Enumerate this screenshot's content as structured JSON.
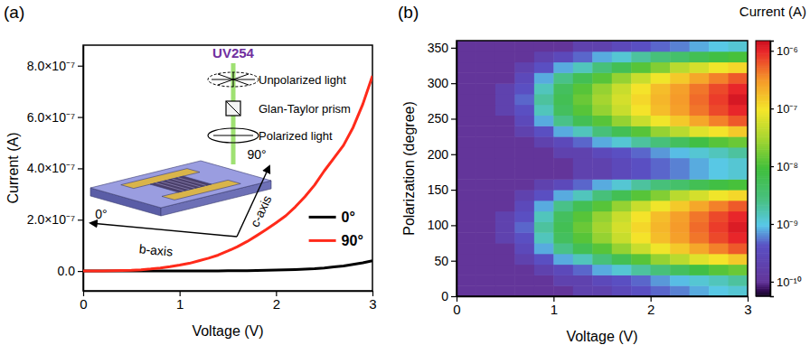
{
  "chart_data": [
    {
      "type": "line",
      "title": "(a)",
      "x_label": "Voltage (V)",
      "y_label": "Current (A)",
      "xlim": [
        0,
        3
      ],
      "xticks": [
        0,
        1,
        2,
        3
      ],
      "ylim": [
        -7.7e-08,
        8.8e-07
      ],
      "yticks": [
        {
          "value": 0,
          "label": "0.0"
        },
        {
          "value": 2e-07,
          "label": "2.0×10⁻⁷"
        },
        {
          "value": 4e-07,
          "label": "4.0×10⁻⁷"
        },
        {
          "value": 6e-07,
          "label": "6.0×10⁻⁷"
        },
        {
          "value": 8e-07,
          "label": "8.0×10⁻⁷"
        }
      ],
      "grid": false,
      "legend": "right",
      "x": [
        0,
        0.1,
        0.2,
        0.3,
        0.4,
        0.5,
        0.6,
        0.7,
        0.8,
        0.9,
        1,
        1.1,
        1.2,
        1.3,
        1.4,
        1.5,
        1.6,
        1.7,
        1.8,
        1.9,
        2,
        2.1,
        2.2,
        2.3,
        2.4,
        2.5,
        2.6,
        2.7,
        2.8,
        2.9,
        3
      ],
      "series": [
        {
          "name": "0°",
          "color": "#000000",
          "values": [
            0,
            0,
            0,
            0,
            0,
            0,
            0,
            0,
            0,
            1e-10,
            1e-10,
            2e-10,
            3e-10,
            5e-10,
            7e-10,
            1e-09,
            1.3e-09,
            1.6e-09,
            2e-09,
            3e-09,
            4e-09,
            5e-09,
            6e-09,
            7.5e-09,
            9e-09,
            1.2e-08,
            1.6e-08,
            2e-08,
            2.6e-08,
            3.2e-08,
            4e-08
          ]
        },
        {
          "name": "90°",
          "color": "#ff2a1a",
          "values": [
            0,
            0,
            5e-10,
            1e-09,
            2e-09,
            3e-09,
            5e-09,
            8e-09,
            1.2e-08,
            1.7e-08,
            2.3e-08,
            3e-08,
            4e-08,
            5e-08,
            6.2e-08,
            7.8e-08,
            9.5e-08,
            1.15e-07,
            1.38e-07,
            1.62e-07,
            1.88e-07,
            2.15e-07,
            2.5e-07,
            2.9e-07,
            3.35e-07,
            3.9e-07,
            4.4e-07,
            4.9e-07,
            5.6e-07,
            6.5e-07,
            7.6e-07
          ]
        }
      ],
      "annotations": [
        "UV254",
        "Unpolarized light",
        "Glan-Taylor prism",
        "Polarized light",
        "90°",
        "c-axis",
        "0°",
        "b-axis"
      ]
    },
    {
      "type": "heatmap",
      "title": "(b)",
      "x_label": "Voltage (V)",
      "y_label": "Polarization (degree)",
      "xlim": [
        0,
        3
      ],
      "xticks": [
        0,
        1,
        2,
        3
      ],
      "ylim": [
        0,
        360
      ],
      "yticks": [
        0,
        50,
        100,
        150,
        200,
        250,
        300,
        350
      ],
      "x": [
        0.1,
        0.3,
        0.5,
        0.7,
        0.9,
        1.1,
        1.3,
        1.5,
        1.7,
        1.9,
        2.1,
        2.3,
        2.5,
        2.7,
        2.9
      ],
      "y": [
        7.5,
        22.5,
        37.5,
        52.5,
        67.5,
        82.5,
        97.5,
        112.5,
        127.5,
        142.5,
        157.5,
        172.5,
        187.5,
        202.5,
        217.5,
        232.5,
        247.5,
        262.5,
        277.5,
        292.5,
        307.5,
        322.5,
        337.5,
        352.5
      ],
      "cells": [
        [
          1e-10,
          1e-10,
          1e-10,
          1e-10,
          1e-10,
          1e-10,
          2e-10,
          2e-10,
          3e-10,
          4e-10,
          5e-10,
          6e-10,
          8e-10,
          1e-09,
          1.2e-09
        ],
        [
          1e-10,
          1e-10,
          1e-10,
          1e-10,
          1e-10,
          2e-10,
          2e-10,
          3e-10,
          4e-10,
          5e-10,
          7e-10,
          9e-10,
          1.2e-09,
          1.5e-09,
          2e-09
        ],
        [
          1e-10,
          1e-10,
          1e-10,
          1e-10,
          2e-10,
          3e-10,
          5e-10,
          8e-10,
          1.2e-09,
          2e-09,
          3e-09,
          5e-09,
          8e-09,
          1.2e-08,
          1.5e-08
        ],
        [
          1e-10,
          1e-10,
          1e-10,
          2e-10,
          4e-10,
          8e-10,
          1.5e-09,
          3e-09,
          6e-09,
          1.2e-08,
          2.5e-08,
          4e-08,
          7e-08,
          1e-07,
          1.5e-07
        ],
        [
          1e-10,
          1e-10,
          1e-10,
          3e-10,
          8e-10,
          2.5e-09,
          6e-09,
          1.2e-08,
          2.5e-08,
          5e-08,
          9e-08,
          1.5e-07,
          2.5e-07,
          4e-07,
          6e-07
        ],
        [
          1e-10,
          1e-10,
          2e-10,
          4e-10,
          1.5e-09,
          5e-09,
          1.2e-08,
          2.5e-08,
          5e-08,
          1e-07,
          1.8e-07,
          2.8e-07,
          4.5e-07,
          7e-07,
          1e-06
        ],
        [
          1e-10,
          1e-10,
          2e-10,
          5e-10,
          2e-09,
          6e-09,
          1.5e-08,
          3e-08,
          6e-08,
          1.2e-07,
          2e-07,
          3e-07,
          5e-07,
          8e-07,
          1.2e-06
        ],
        [
          1e-10,
          1e-10,
          2e-10,
          4e-10,
          1.5e-09,
          5e-09,
          1.2e-08,
          2.5e-08,
          5e-08,
          1e-07,
          1.8e-07,
          2.8e-07,
          4.5e-07,
          7e-07,
          1e-06
        ],
        [
          1e-10,
          1e-10,
          1e-10,
          3e-10,
          8e-10,
          2.5e-09,
          6e-09,
          1.2e-08,
          2.5e-08,
          5e-08,
          9e-08,
          1.5e-07,
          2.5e-07,
          4e-07,
          6e-07
        ],
        [
          1e-10,
          1e-10,
          1e-10,
          2e-10,
          4e-10,
          8e-10,
          1.5e-09,
          3e-09,
          6e-09,
          1.2e-08,
          2e-08,
          4e-08,
          6e-08,
          9e-08,
          1.2e-07
        ],
        [
          1e-10,
          1e-10,
          1e-10,
          1e-10,
          2e-10,
          3e-10,
          5e-10,
          8e-10,
          1.2e-09,
          2e-09,
          3e-09,
          4e-09,
          6e-09,
          8e-09,
          1e-08
        ],
        [
          1e-10,
          1e-10,
          1e-10,
          1e-10,
          1e-10,
          1e-10,
          2e-10,
          2e-10,
          3e-10,
          4e-10,
          5e-10,
          6e-10,
          8e-10,
          1e-09,
          1.2e-09
        ],
        [
          1e-10,
          1e-10,
          1e-10,
          1e-10,
          1e-10,
          1e-10,
          2e-10,
          2e-10,
          3e-10,
          4e-10,
          5e-10,
          6e-10,
          8e-10,
          1e-09,
          1.2e-09
        ],
        [
          1e-10,
          1e-10,
          1e-10,
          1e-10,
          1e-10,
          2e-10,
          2e-10,
          3e-10,
          4e-10,
          5e-10,
          7e-10,
          9e-10,
          1.2e-09,
          1.5e-09,
          2e-09
        ],
        [
          1e-10,
          1e-10,
          1e-10,
          1e-10,
          2e-10,
          3e-10,
          5e-10,
          8e-10,
          1.2e-09,
          2e-09,
          3e-09,
          5e-09,
          8e-09,
          1.2e-08,
          1.5e-08
        ],
        [
          1e-10,
          1e-10,
          1e-10,
          2e-10,
          4e-10,
          8e-10,
          1.5e-09,
          3e-09,
          6e-09,
          1.2e-08,
          2.5e-08,
          4e-08,
          7e-08,
          1e-07,
          1.5e-07
        ],
        [
          1e-10,
          1e-10,
          1e-10,
          3e-10,
          8e-10,
          2.5e-09,
          6e-09,
          1.2e-08,
          2.5e-08,
          5e-08,
          9e-08,
          1.5e-07,
          2.5e-07,
          4e-07,
          6e-07
        ],
        [
          1e-10,
          1e-10,
          2e-10,
          4e-10,
          1.5e-09,
          5e-09,
          1.2e-08,
          2.5e-08,
          5e-08,
          1e-07,
          1.8e-07,
          2.8e-07,
          4.5e-07,
          7e-07,
          1e-06
        ],
        [
          1e-10,
          1e-10,
          2e-10,
          5e-10,
          2e-09,
          6e-09,
          1.5e-08,
          3e-08,
          6e-08,
          1.2e-07,
          2e-07,
          3e-07,
          5e-07,
          8e-07,
          1.3e-06
        ],
        [
          1e-10,
          1e-10,
          2e-10,
          4e-10,
          1.5e-09,
          5e-09,
          1.2e-08,
          2.5e-08,
          5e-08,
          1e-07,
          1.8e-07,
          2.8e-07,
          4.5e-07,
          7e-07,
          1e-06
        ],
        [
          1e-10,
          1e-10,
          1e-10,
          3e-10,
          8e-10,
          2.5e-09,
          6e-09,
          1.2e-08,
          2.5e-08,
          5e-08,
          9e-08,
          1.5e-07,
          2.5e-07,
          4e-07,
          6e-07
        ],
        [
          1e-10,
          1e-10,
          1e-10,
          2e-10,
          4e-10,
          8e-10,
          1.5e-09,
          3e-09,
          6e-09,
          1.2e-08,
          2e-08,
          4e-08,
          6e-08,
          9e-08,
          1.2e-07
        ],
        [
          1e-10,
          1e-10,
          1e-10,
          1e-10,
          2e-10,
          3e-10,
          5e-10,
          8e-10,
          1.2e-09,
          2e-09,
          3e-09,
          4e-09,
          6e-09,
          8e-09,
          1e-08
        ],
        [
          1e-10,
          1e-10,
          1e-10,
          1e-10,
          1e-10,
          1e-10,
          2e-10,
          2e-10,
          3e-10,
          4e-10,
          5e-10,
          6e-10,
          8e-10,
          1e-09,
          1.2e-09
        ]
      ],
      "colorbar": {
        "title": "Current (A)",
        "log": true,
        "range": [
          5.6e-11,
          1.5e-06
        ],
        "ticks": [
          {
            "value": 1e-10,
            "label": "10⁻¹⁰"
          },
          {
            "value": 1e-09,
            "label": "10⁻⁹"
          },
          {
            "value": 1e-08,
            "label": "10⁻⁸"
          },
          {
            "value": 1e-07,
            "label": "10⁻⁷"
          },
          {
            "value": 1e-06,
            "label": "10⁻⁶"
          }
        ]
      }
    }
  ]
}
